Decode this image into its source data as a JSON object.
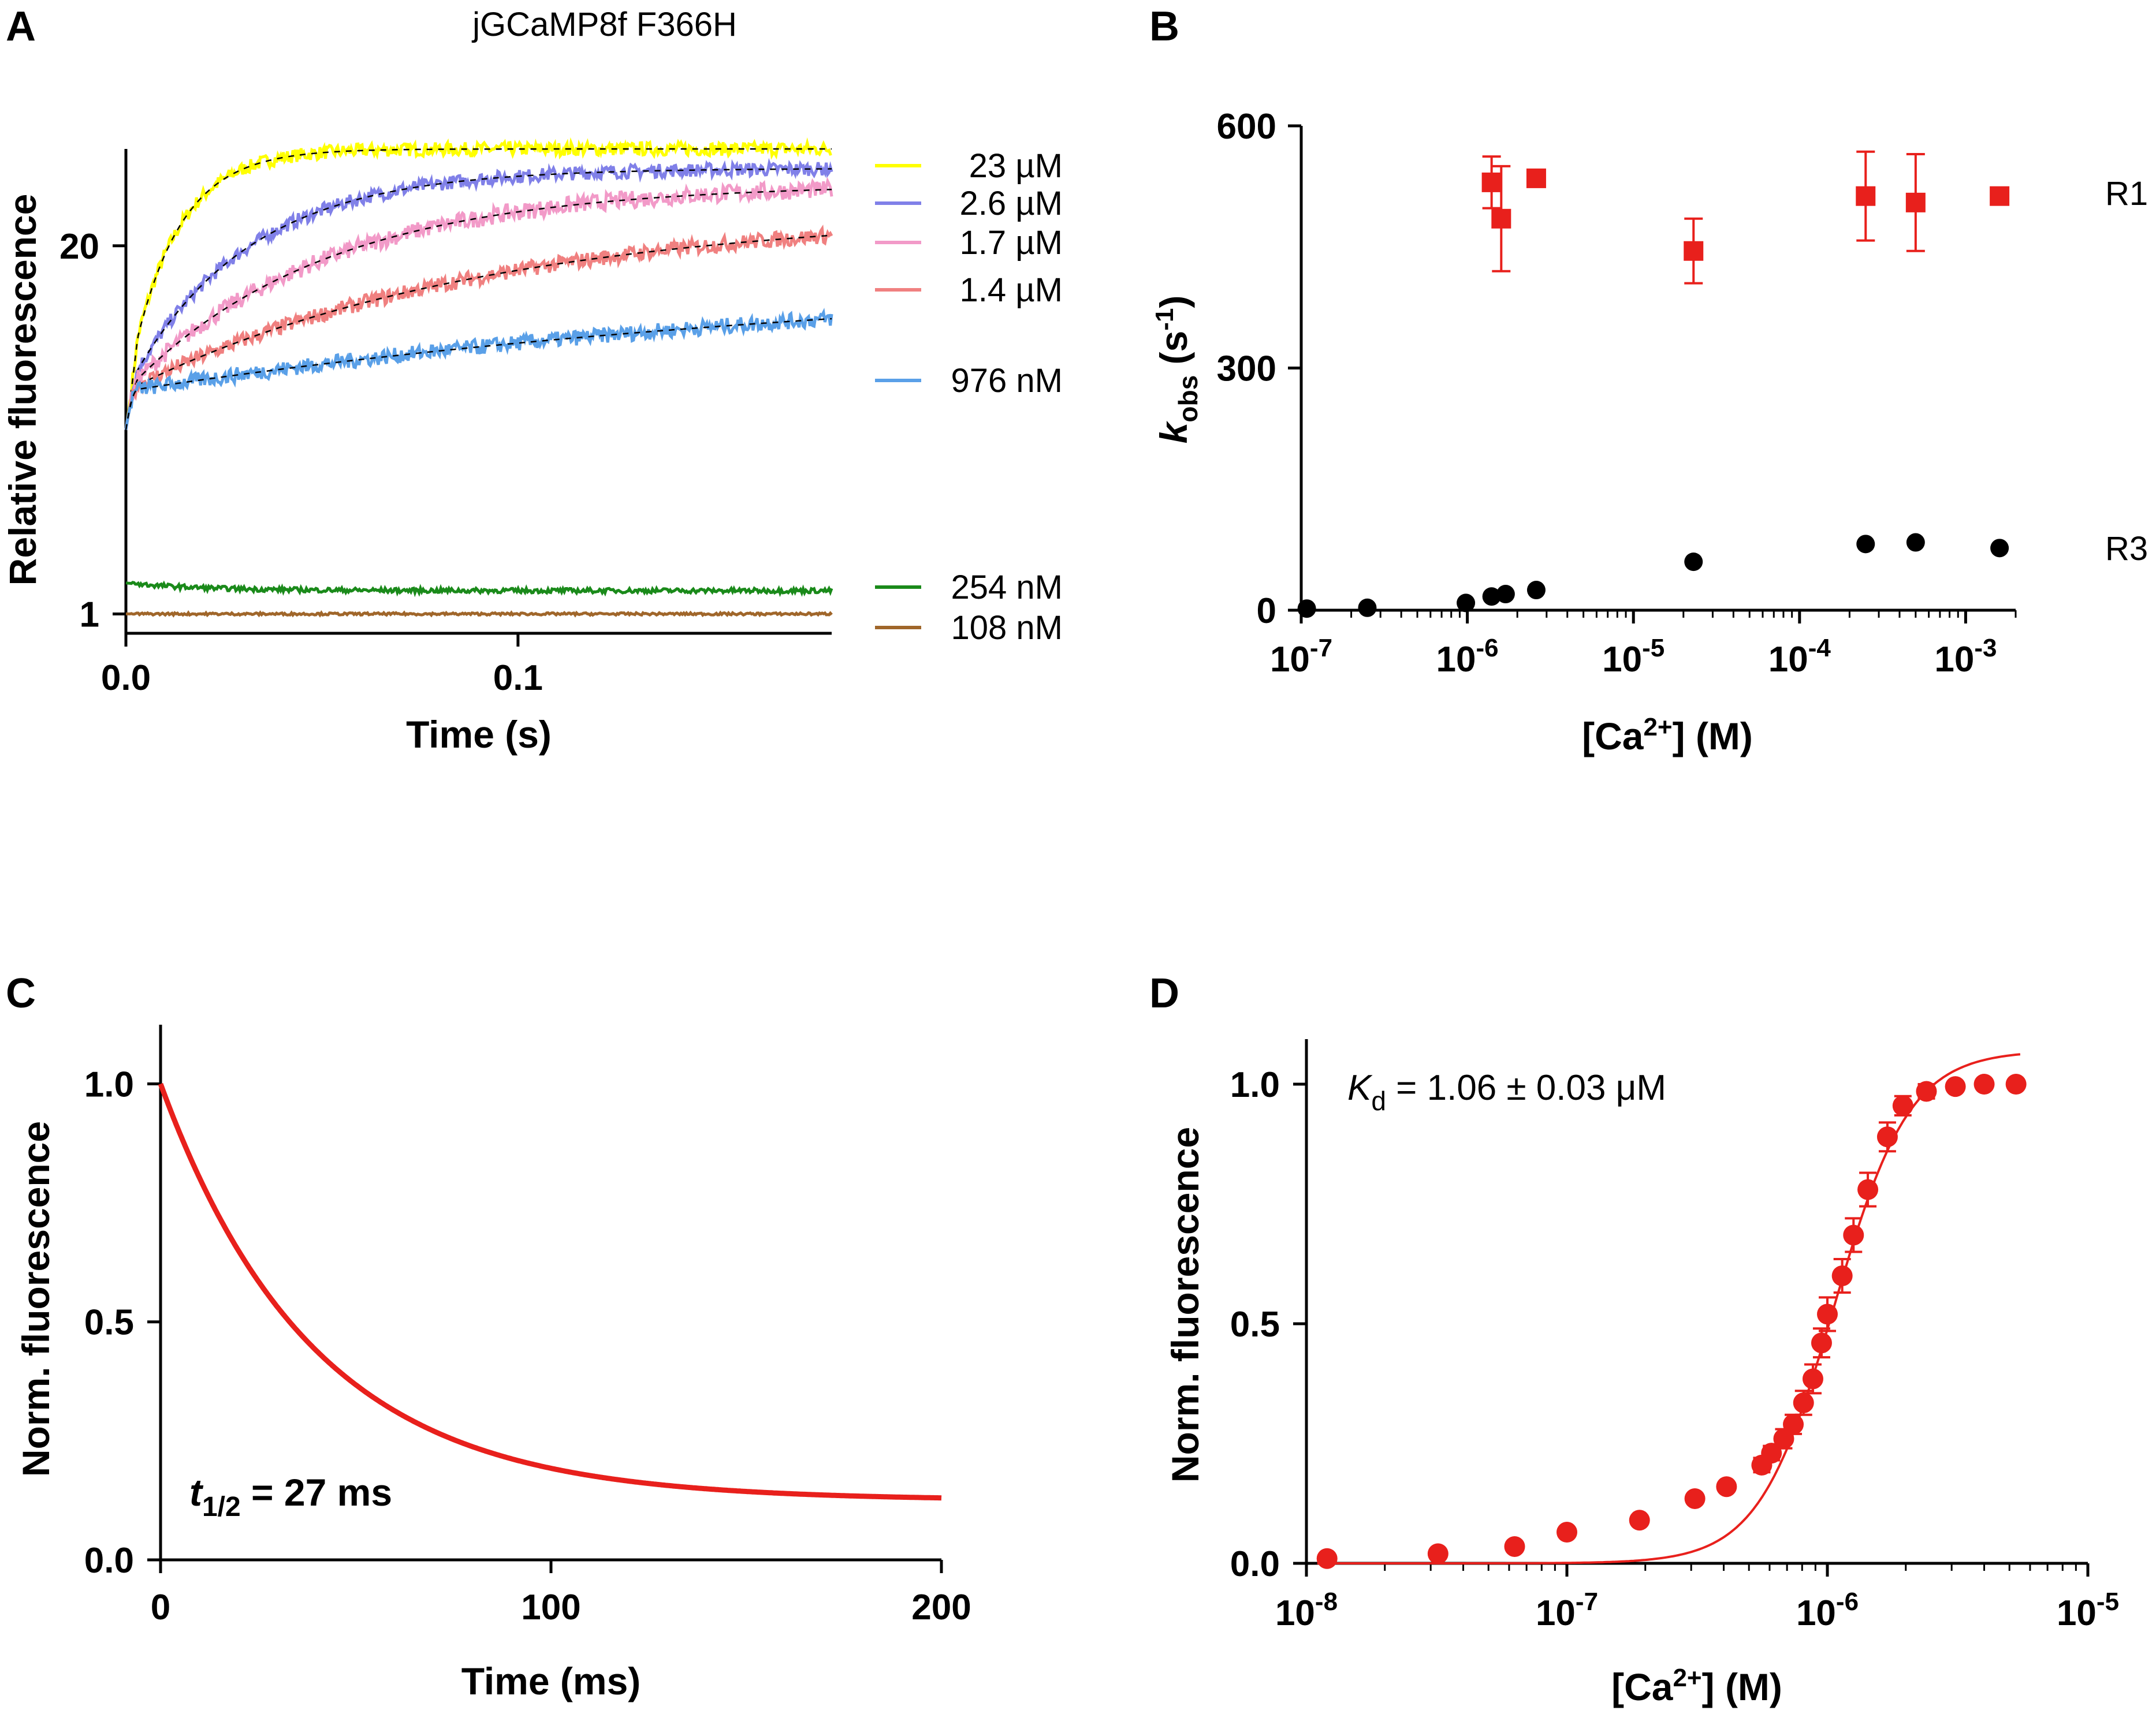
{
  "chart_data": [
    {
      "panel": "A",
      "type": "line",
      "title": "jGCaMP8f F366H",
      "xlabel": "Time (s)",
      "ylabel": "Relative fluorescence",
      "xlim": [
        0,
        0.18
      ],
      "ylim": [
        0,
        25
      ],
      "x_ticks": [
        {
          "v": 0,
          "label": "0.0"
        },
        {
          "v": 0.1,
          "label": "0.1"
        }
      ],
      "y_ticks": [
        {
          "v": 1,
          "label": "1"
        },
        {
          "v": 20,
          "label": "20"
        }
      ],
      "series": [
        {
          "name": "23 µM",
          "color": "#ffff00",
          "start": 12.5,
          "end": 25.0,
          "tau": 0.012,
          "noise": 0.35
        },
        {
          "name": "2.6 µM",
          "color": "#8080e8",
          "start": 12.5,
          "end": 24.0,
          "tau": 0.03,
          "noise": 0.35
        },
        {
          "name": "1.7 µM",
          "color": "#f29ac8",
          "start": 12.5,
          "end": 23.2,
          "tau": 0.05,
          "noise": 0.45
        },
        {
          "name": "1.4 µM",
          "color": "#f08080",
          "start": 12.5,
          "end": 21.8,
          "tau": 0.09,
          "noise": 0.4
        },
        {
          "name": "976 nM",
          "color": "#5aa0e8",
          "start": 12.5,
          "end": 18.8,
          "tau": 0.2,
          "noise": 0.4
        },
        {
          "name": "254 nM",
          "color": "#1a8a1a",
          "start": 2.6,
          "end": 2.2,
          "tau": 0.02,
          "noise": 0.12
        },
        {
          "name": "108 nM",
          "color": "#a0662a",
          "start": 1.0,
          "end": 1.0,
          "tau": 0.1,
          "noise": 0.06
        }
      ]
    },
    {
      "panel": "B",
      "type": "scatter",
      "xlabel": "[Ca2+] (M)",
      "ylabel": "kobs (s-1)",
      "xscale": "log",
      "xlim": [
        1e-07,
        0.002
      ],
      "ylim": [
        0,
        600
      ],
      "x_ticks": [
        {
          "v": 1e-07,
          "exp": "-7"
        },
        {
          "v": 1e-06,
          "exp": "-6"
        },
        {
          "v": 1e-05,
          "exp": "-5"
        },
        {
          "v": 0.0001,
          "exp": "-4"
        },
        {
          "v": 0.001,
          "exp": "-3"
        }
      ],
      "y_ticks": [
        {
          "v": 0,
          "label": "0"
        },
        {
          "v": 300,
          "label": "300"
        },
        {
          "v": 600,
          "label": "600"
        }
      ],
      "series": [
        {
          "name": "R1",
          "marker": "square",
          "color": "#e8201c",
          "points": [
            {
              "x": 1.4e-06,
              "y": 530,
              "err": 32
            },
            {
              "x": 1.6e-06,
              "y": 485,
              "err": 65
            },
            {
              "x": 2.6e-06,
              "y": 535,
              "err": 0
            },
            {
              "x": 2.3e-05,
              "y": 445,
              "err": 40
            },
            {
              "x": 0.00025,
              "y": 513,
              "err": 55
            },
            {
              "x": 0.0005,
              "y": 505,
              "err": 60
            },
            {
              "x": 0.0016,
              "y": 513,
              "err": 0
            }
          ]
        },
        {
          "name": "R3",
          "marker": "circle",
          "color": "#000000",
          "points": [
            {
              "x": 1.08e-07,
              "y": 2
            },
            {
              "x": 2.5e-07,
              "y": 3
            },
            {
              "x": 9.8e-07,
              "y": 9
            },
            {
              "x": 1.4e-06,
              "y": 17
            },
            {
              "x": 1.7e-06,
              "y": 20
            },
            {
              "x": 2.6e-06,
              "y": 25
            },
            {
              "x": 2.3e-05,
              "y": 60
            },
            {
              "x": 0.00025,
              "y": 82
            },
            {
              "x": 0.0005,
              "y": 84
            },
            {
              "x": 0.0016,
              "y": 77
            }
          ]
        }
      ]
    },
    {
      "panel": "C",
      "type": "line",
      "xlabel": "Time (ms)",
      "ylabel": "Norm. fluorescence",
      "xlim": [
        0,
        200
      ],
      "ylim": [
        0,
        1.1
      ],
      "x_ticks": [
        {
          "v": 0,
          "label": "0"
        },
        {
          "v": 100,
          "label": "100"
        },
        {
          "v": 200,
          "label": "200"
        }
      ],
      "y_ticks": [
        {
          "v": 0,
          "label": "0.0"
        },
        {
          "v": 0.5,
          "label": "0.5"
        },
        {
          "v": 1.0,
          "label": "1.0"
        }
      ],
      "series": [
        {
          "name": "decay",
          "color": "#e8201c",
          "start": 1.0,
          "plateau": 0.125,
          "tau_ms": 39
        }
      ]
    },
    {
      "panel": "D",
      "type": "scatter",
      "xlabel": "[Ca2+] (M)",
      "ylabel": "Norm. fluorescence",
      "xscale": "log",
      "xlim": [
        1e-08,
        1e-05
      ],
      "ylim": [
        0,
        1.1
      ],
      "x_ticks": [
        {
          "v": 1e-08,
          "exp": "-8"
        },
        {
          "v": 1e-07,
          "exp": "-7"
        },
        {
          "v": 1e-06,
          "exp": "-6"
        },
        {
          "v": 1e-05,
          "exp": "-5"
        }
      ],
      "y_ticks": [
        {
          "v": 0,
          "label": "0.0"
        },
        {
          "v": 0.5,
          "label": "0.5"
        },
        {
          "v": 1.0,
          "label": "1.0"
        }
      ],
      "fit": {
        "type": "hill",
        "kd": 1.06e-06,
        "n": 3.0,
        "color": "#e8201c"
      },
      "series": [
        {
          "name": "data",
          "color": "#e8201c",
          "points": [
            {
              "x": 1.2e-08,
              "y": 0.01,
              "err": 0
            },
            {
              "x": 3.2e-08,
              "y": 0.02,
              "err": 0
            },
            {
              "x": 6.3e-08,
              "y": 0.035,
              "err": 0
            },
            {
              "x": 1e-07,
              "y": 0.065,
              "err": 0
            },
            {
              "x": 1.9e-07,
              "y": 0.09,
              "err": 0
            },
            {
              "x": 3.1e-07,
              "y": 0.135,
              "err": 0
            },
            {
              "x": 4.1e-07,
              "y": 0.16,
              "err": 0
            },
            {
              "x": 5.6e-07,
              "y": 0.205,
              "err": 0.015
            },
            {
              "x": 6.1e-07,
              "y": 0.23,
              "err": 0.015
            },
            {
              "x": 6.8e-07,
              "y": 0.26,
              "err": 0.02
            },
            {
              "x": 7.4e-07,
              "y": 0.29,
              "err": 0.02
            },
            {
              "x": 8.1e-07,
              "y": 0.335,
              "err": 0.025
            },
            {
              "x": 8.8e-07,
              "y": 0.385,
              "err": 0.03
            },
            {
              "x": 9.5e-07,
              "y": 0.46,
              "err": 0.03
            },
            {
              "x": 1e-06,
              "y": 0.52,
              "err": 0.035
            },
            {
              "x": 1.14e-06,
              "y": 0.6,
              "err": 0.035
            },
            {
              "x": 1.26e-06,
              "y": 0.685,
              "err": 0.035
            },
            {
              "x": 1.43e-06,
              "y": 0.78,
              "err": 0.035
            },
            {
              "x": 1.7e-06,
              "y": 0.89,
              "err": 0.03
            },
            {
              "x": 1.95e-06,
              "y": 0.955,
              "err": 0.02
            },
            {
              "x": 2.4e-06,
              "y": 0.985,
              "err": 0.015
            },
            {
              "x": 3.1e-06,
              "y": 0.995,
              "err": 0
            },
            {
              "x": 4e-06,
              "y": 1.0,
              "err": 0
            },
            {
              "x": 5.3e-06,
              "y": 1.0,
              "err": 0
            }
          ]
        }
      ]
    }
  ],
  "text": {
    "panel_a_letter": "A",
    "panel_b_letter": "B",
    "panel_c_letter": "C",
    "panel_d_letter": "D",
    "panel_a_title": "jGCaMP8f F366H",
    "a_xlabel": "Time (s)",
    "a_ylabel": "Relative fluorescence",
    "b_xlabel_pre": "[Ca",
    "b_xlabel_sup": "2+",
    "b_xlabel_post": "] (M)",
    "b_ylabel_k": "k",
    "b_ylabel_sub": "obs",
    "b_ylabel_mid": " (s",
    "b_ylabel_sup": "-1",
    "b_ylabel_post": ")",
    "b_r1": "R1",
    "b_r3": "R3",
    "c_xlabel": "Time (ms)",
    "c_ylabel": "Norm. fluorescence",
    "c_t": "t",
    "c_t_sub": "1/2",
    "c_t_rest": " = 27 ms",
    "d_xlabel_pre": "[Ca",
    "d_xlabel_sup": "2+",
    "d_xlabel_post": "] (M)",
    "d_ylabel": "Norm. fluorescence",
    "d_kd": "K",
    "d_kd_sub": "d",
    "d_kd_rest": " = 1.06 ± 0.03  μM",
    "tick_base": "10"
  }
}
